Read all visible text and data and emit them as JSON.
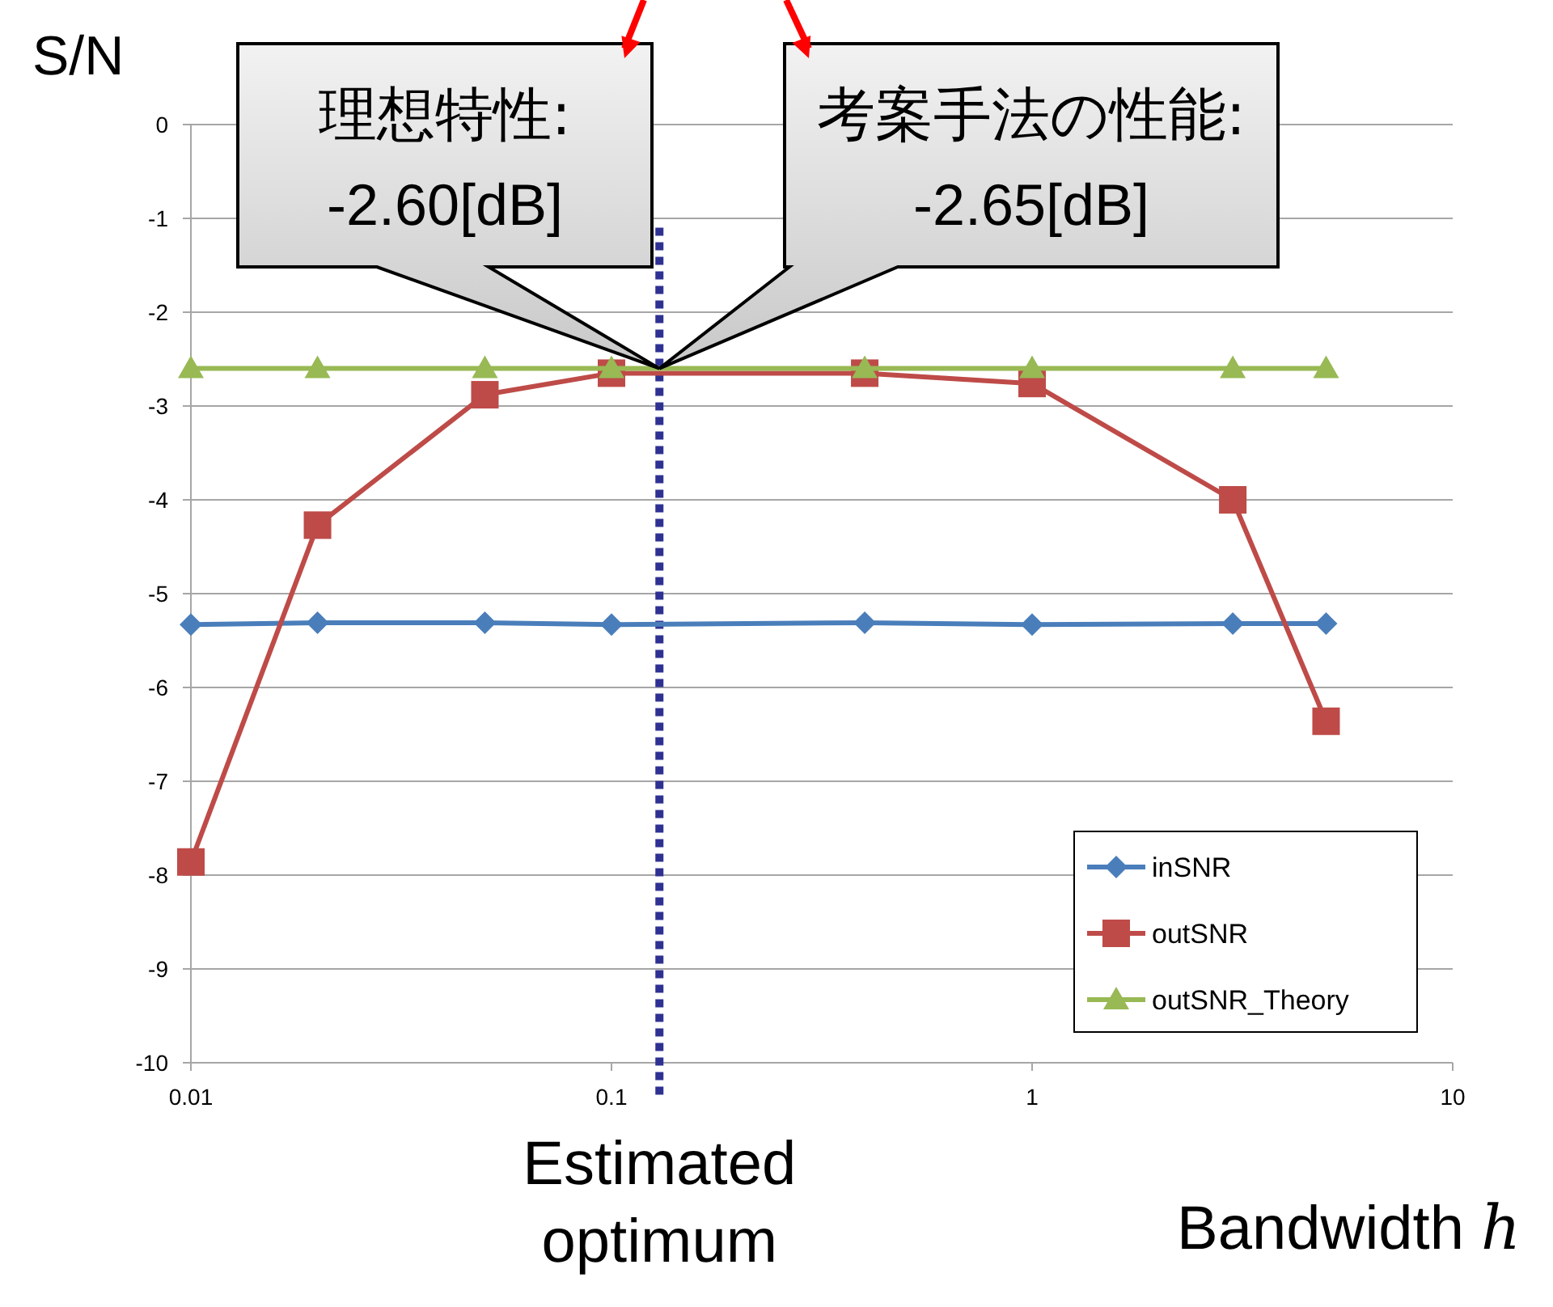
{
  "chart_data": {
    "type": "line",
    "xlabel": "Bandwidth *h*",
    "ylabel": "S/N",
    "log": "x",
    "grid": "y",
    "legend": "bottom right",
    "line_style": "solid",
    "x": [
      0.01,
      0.02,
      0.05,
      0.1,
      0.4,
      1,
      3,
      5
    ],
    "xlim": [
      0.01,
      10
    ],
    "xticks": [
      0.01,
      0.1,
      1,
      10
    ],
    "ylim": [
      -10,
      0
    ],
    "yticks": [
      -10,
      -9,
      -8,
      -7,
      -6,
      -5,
      -4,
      -3,
      -2,
      -1,
      0
    ],
    "series": [
      {
        "name": "inSNR",
        "color": "#4a7ebb",
        "marker": "diamond",
        "values": [
          -5.33,
          -5.31,
          -5.31,
          -5.33,
          -5.31,
          -5.33,
          -5.32,
          -5.32
        ]
      },
      {
        "name": "outSNR",
        "color": "#be4b48",
        "marker": "square",
        "values": [
          -7.86,
          -4.27,
          -2.88,
          -2.65,
          -2.65,
          -2.76,
          -4.0,
          -6.36
        ]
      },
      {
        "name": "outSNR_Theory",
        "color": "#98b954",
        "marker": "triangle",
        "values": [
          -2.6,
          -2.6,
          -2.6,
          -2.6,
          -2.6,
          -2.6,
          -2.6,
          -2.6
        ]
      }
    ],
    "ref_lines": [
      {
        "axis": "x",
        "value": 0.13,
        "label": "Estimated optimum",
        "color": "#2e3192",
        "line_style": "dotted"
      }
    ],
    "annotations": [
      {
        "text": "理想特性: -2.60[dB]",
        "x": 0.13,
        "y": -2.6
      },
      "考案手法の性能: -2.65[dB]"
    ]
  }
}
